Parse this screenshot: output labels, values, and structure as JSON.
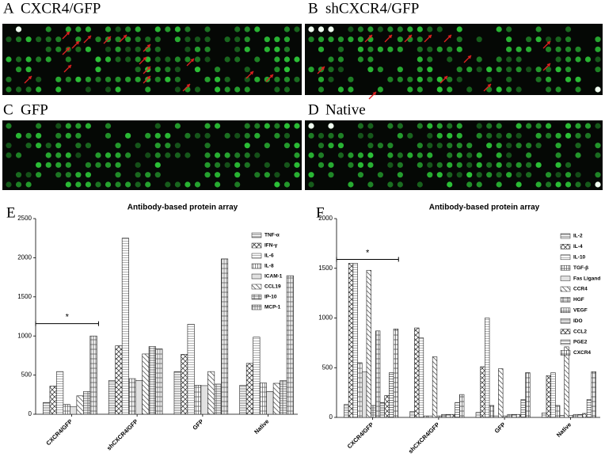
{
  "panels": [
    {
      "letter": "A",
      "label": "CXCR4/GFP"
    },
    {
      "letter": "B",
      "label": "shCXCR4/GFP"
    },
    {
      "letter": "C",
      "label": "GFP"
    },
    {
      "letter": "D",
      "label": "Native"
    }
  ],
  "chart_data": [
    {
      "type": "bar",
      "panel_letter": "E",
      "title": "Antibody-based protein array",
      "categories": [
        "CXCR4/GFP",
        "shCXCR4/GFP",
        "GFP",
        "Native"
      ],
      "series": [
        {
          "name": "TNF-α",
          "color": "#777777",
          "values": [
            150,
            430,
            545,
            370
          ]
        },
        {
          "name": "IFN-γ",
          "color": "#444444",
          "values": [
            360,
            875,
            765,
            650
          ]
        },
        {
          "name": "IL-6",
          "color": "#999999",
          "values": [
            545,
            2250,
            1150,
            985
          ]
        },
        {
          "name": "IL-8",
          "color": "#555555",
          "values": [
            125,
            455,
            370,
            400
          ]
        },
        {
          "name": "ICAM-1",
          "color": "#888888",
          "values": [
            95,
            430,
            365,
            290
          ]
        },
        {
          "name": "CCL19",
          "color": "#666666",
          "values": [
            235,
            770,
            545,
            395
          ]
        },
        {
          "name": "IP-10",
          "color": "#444444",
          "values": [
            290,
            865,
            385,
            430
          ]
        },
        {
          "name": "MCP-1",
          "color": "#555555",
          "values": [
            1000,
            835,
            1985,
            1770
          ]
        }
      ],
      "ylim": [
        0,
        2500
      ],
      "yticks": [
        0,
        500,
        1000,
        1500,
        2000,
        2500
      ],
      "annotation": "*"
    },
    {
      "type": "bar",
      "panel_letter": "F",
      "title": "Antibody-based protein array",
      "categories": [
        "CXCR4/GFP",
        "shCXCR4/GFP",
        "GFP",
        "Native"
      ],
      "series": [
        {
          "name": "IL-2",
          "color": "#777777",
          "values": [
            130,
            60,
            50,
            45
          ]
        },
        {
          "name": "IL-4",
          "color": "#444444",
          "values": [
            1550,
            900,
            510,
            420
          ]
        },
        {
          "name": "IL-10",
          "color": "#999999",
          "values": [
            1550,
            800,
            1000,
            450
          ]
        },
        {
          "name": "TGF-β",
          "color": "#555555",
          "values": [
            550,
            15,
            120,
            120
          ]
        },
        {
          "name": "Fas Ligand",
          "color": "#888888",
          "values": [
            460,
            15,
            15,
            20
          ]
        },
        {
          "name": "CCR4",
          "color": "#666666",
          "values": [
            1480,
            610,
            490,
            710
          ]
        },
        {
          "name": "HGF",
          "color": "#444444",
          "values": [
            120,
            15,
            15,
            20
          ]
        },
        {
          "name": "VEGF",
          "color": "#555555",
          "values": [
            870,
            30,
            30,
            30
          ]
        },
        {
          "name": "IDO",
          "color": "#666666",
          "values": [
            150,
            30,
            30,
            30
          ]
        },
        {
          "name": "CCL2",
          "color": "#444444",
          "values": [
            220,
            30,
            30,
            40
          ]
        },
        {
          "name": "PGE2",
          "color": "#555555",
          "values": [
            450,
            150,
            180,
            180
          ]
        },
        {
          "name": "CXCR4",
          "color": "#444444",
          "values": [
            890,
            230,
            450,
            460
          ]
        }
      ],
      "ylim": [
        0,
        2000
      ],
      "yticks": [
        0,
        500,
        1000,
        1500,
        2000
      ],
      "annotation": "*"
    }
  ]
}
